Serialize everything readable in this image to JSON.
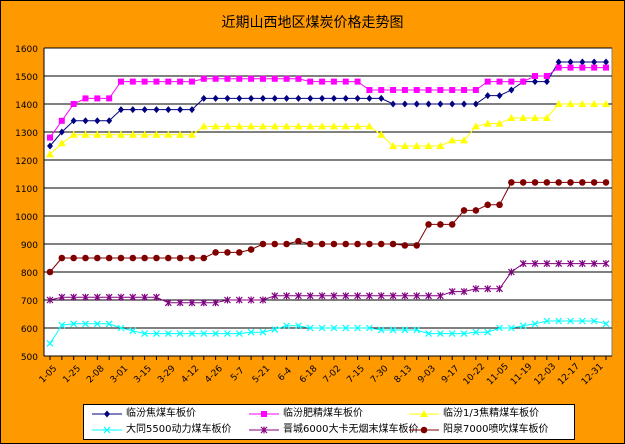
{
  "chart_data": {
    "type": "line",
    "title": "近期山西地区煤炭价格走势图",
    "xlabel": "",
    "ylabel": "",
    "ylim": [
      500,
      1600
    ],
    "yticks": [
      500,
      600,
      700,
      800,
      900,
      1000,
      1100,
      1200,
      1300,
      1400,
      1500,
      1600
    ],
    "grid": true,
    "legend_position": "bottom",
    "x_tick_labels": [
      "1-05",
      "1-25",
      "2-08",
      "3-01",
      "3-15",
      "3-29",
      "4-12",
      "4-26",
      "5-7",
      "5-21",
      "6-4",
      "6-18",
      "7-02",
      "7-15",
      "7-30",
      "8-13",
      "9-03",
      "9-17",
      "10-22",
      "11-05",
      "11-19",
      "12-03",
      "12-17",
      "12-31"
    ],
    "series": [
      {
        "name": "临汾焦煤车板价",
        "color": "#000080",
        "marker": "diamond",
        "values": [
          1250,
          1300,
          1340,
          1340,
          1340,
          1340,
          1380,
          1380,
          1380,
          1380,
          1380,
          1380,
          1380,
          1420,
          1420,
          1420,
          1420,
          1420,
          1420,
          1420,
          1420,
          1420,
          1420,
          1420,
          1420,
          1420,
          1420,
          1420,
          1420,
          1400,
          1400,
          1400,
          1400,
          1400,
          1400,
          1400,
          1400,
          1430,
          1430,
          1450,
          1480,
          1480,
          1480,
          1550,
          1550,
          1550,
          1550,
          1550
        ]
      },
      {
        "name": "临汾肥精煤车板价",
        "color": "#FF00FF",
        "marker": "square",
        "values": [
          1280,
          1340,
          1400,
          1420,
          1420,
          1420,
          1480,
          1480,
          1480,
          1480,
          1480,
          1480,
          1480,
          1490,
          1490,
          1490,
          1490,
          1490,
          1490,
          1490,
          1490,
          1490,
          1480,
          1480,
          1480,
          1480,
          1480,
          1450,
          1450,
          1450,
          1450,
          1450,
          1450,
          1450,
          1450,
          1450,
          1450,
          1480,
          1480,
          1480,
          1480,
          1500,
          1500,
          1530,
          1530,
          1530,
          1530,
          1530
        ]
      },
      {
        "name": "临汾1/3焦精煤车板价",
        "color": "#FFFF00",
        "marker": "triangle",
        "values": [
          1220,
          1260,
          1290,
          1290,
          1290,
          1290,
          1290,
          1290,
          1290,
          1290,
          1290,
          1290,
          1290,
          1320,
          1320,
          1320,
          1320,
          1320,
          1320,
          1320,
          1320,
          1320,
          1320,
          1320,
          1320,
          1320,
          1320,
          1320,
          1290,
          1250,
          1250,
          1250,
          1250,
          1250,
          1270,
          1270,
          1320,
          1330,
          1330,
          1350,
          1350,
          1350,
          1350,
          1400,
          1400,
          1400,
          1400,
          1400
        ]
      },
      {
        "name": "大同5500动力煤车板价",
        "color": "#00FFFF",
        "marker": "x",
        "values": [
          545,
          610,
          615,
          615,
          615,
          615,
          600,
          590,
          580,
          580,
          580,
          580,
          580,
          580,
          580,
          580,
          580,
          585,
          585,
          595,
          608,
          608,
          600,
          600,
          600,
          600,
          600,
          600,
          593,
          593,
          593,
          593,
          580,
          580,
          580,
          580,
          585,
          585,
          600,
          600,
          608,
          615,
          625,
          625,
          625,
          625,
          625,
          615
        ]
      },
      {
        "name": "晋城6000大卡无烟末煤车板价",
        "color": "#800080",
        "marker": "star",
        "values": [
          700,
          710,
          710,
          710,
          710,
          710,
          710,
          710,
          710,
          710,
          690,
          690,
          690,
          690,
          690,
          700,
          700,
          700,
          700,
          715,
          715,
          715,
          715,
          715,
          715,
          715,
          715,
          715,
          715,
          715,
          715,
          715,
          715,
          715,
          730,
          730,
          740,
          740,
          740,
          800,
          830,
          830,
          830,
          830,
          830,
          830,
          830,
          830
        ]
      },
      {
        "name": "阳泉7000喷吹煤车板价",
        "color": "#800000",
        "marker": "circle",
        "values": [
          800,
          850,
          850,
          850,
          850,
          850,
          850,
          850,
          850,
          850,
          850,
          850,
          850,
          850,
          870,
          870,
          870,
          880,
          900,
          900,
          900,
          910,
          900,
          900,
          900,
          900,
          900,
          900,
          900,
          900,
          895,
          895,
          970,
          970,
          970,
          1020,
          1020,
          1040,
          1040,
          1120,
          1120,
          1120,
          1120,
          1120,
          1120,
          1120,
          1120,
          1120
        ]
      }
    ]
  }
}
